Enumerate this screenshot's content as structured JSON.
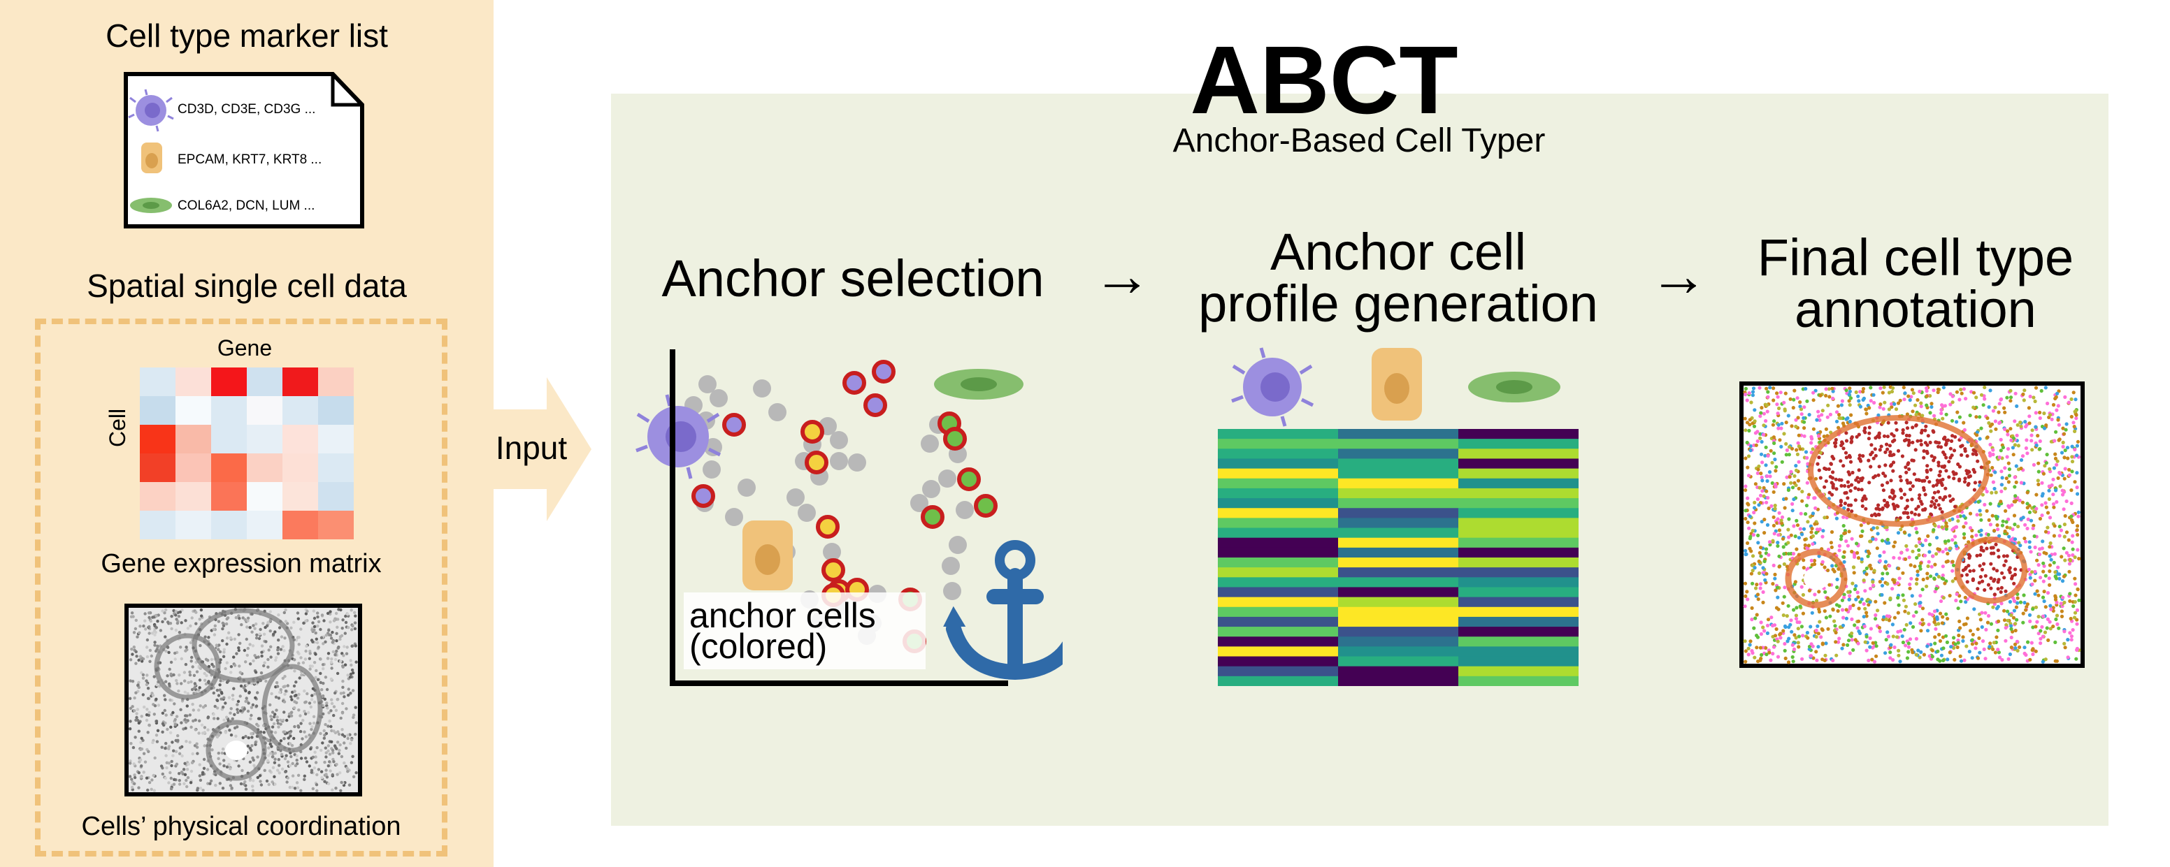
{
  "left": {
    "marker_title": "Cell type marker list",
    "markers": [
      {
        "icon": "t-cell-icon",
        "genes": "CD3D, CD3E, CD3G ..."
      },
      {
        "icon": "epithelial-cell-icon",
        "genes": "EPCAM, KRT7, KRT8 ..."
      },
      {
        "icon": "fibroblast-cell-icon",
        "genes": "COL6A2, DCN, LUM ..."
      }
    ],
    "spatial_title": "Spatial single cell data",
    "matrix_gene_label": "Gene",
    "matrix_cell_label": "Cell",
    "matrix_caption": "Gene expression matrix",
    "coord_caption": "Cells’ physical coordination"
  },
  "input_label": "Input",
  "main": {
    "title": "ABCT",
    "subtitle": "Anchor-Based Cell Typer",
    "steps": [
      {
        "line1": "Anchor selection",
        "line2": ""
      },
      {
        "line1": "Anchor cell",
        "line2": "profile generation"
      },
      {
        "line1": "Final cell type",
        "line2": "annotation"
      }
    ],
    "arrow": "→",
    "anchor_label_1": "anchor cells",
    "anchor_label_2": "(colored)"
  },
  "colors": {
    "left_bg": "#fbe8c7",
    "main_bg": "#eef1e1",
    "dashed_border": "#f0c27a",
    "t_cell": "#9c8fe0",
    "epithelial": "#f0c27a",
    "fibroblast": "#86be6e",
    "anchor_ring": "#c81e1e",
    "grey_cell": "#b8b8b8",
    "anchor_icon": "#2f6aa8"
  }
}
